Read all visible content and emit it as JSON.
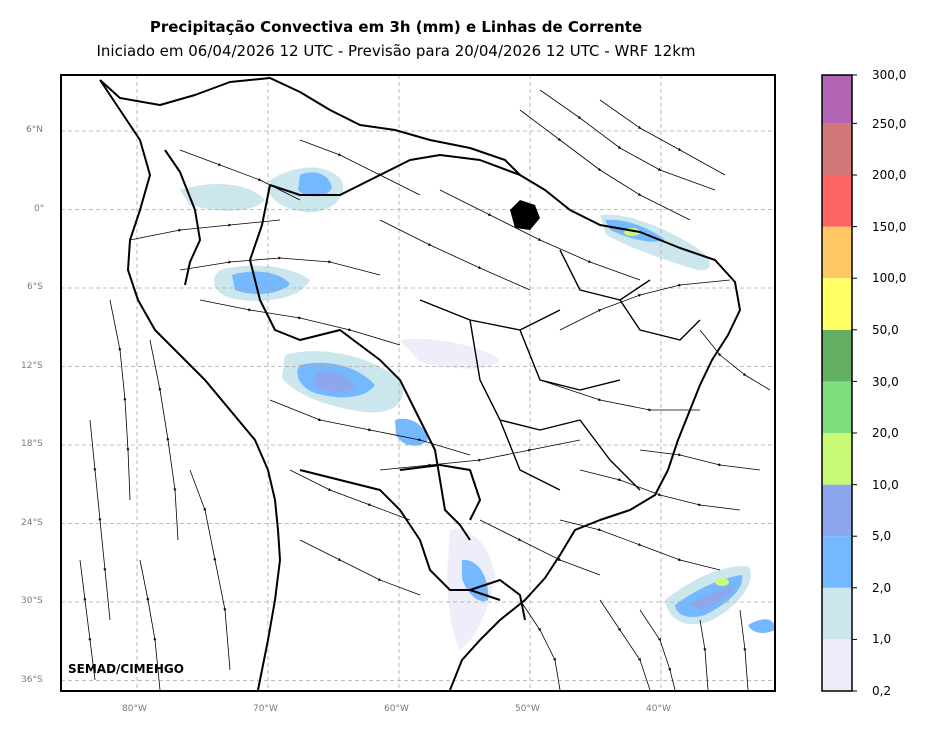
{
  "title": "Precipitação Convectiva em 3h (mm) e Linhas de Corrente",
  "subtitle": "Iniciado em 06/04/2026 12 UTC - Previsão para 20/04/2026 12 UTC - WRF 12km",
  "credit": "SEMAD/CIMEHGO",
  "lat_labels": [
    "6°N",
    "0°",
    "6°S",
    "12°S",
    "18°S",
    "24°S",
    "30°S",
    "36°S"
  ],
  "lon_labels": [
    "80°W",
    "70°W",
    "60°W",
    "50°W",
    "40°W"
  ],
  "colorbar": {
    "levels": [
      "0,2",
      "1,0",
      "2,0",
      "5,0",
      "10,0",
      "20,0",
      "30,0",
      "50,0",
      "100,0",
      "150,0",
      "200,0",
      "250,0",
      "300,0"
    ],
    "colors": [
      "#eeeefa",
      "#cce6ee",
      "#74b8ff",
      "#8ea6ee",
      "#c8fa78",
      "#7cde7c",
      "#64ae64",
      "#ffff64",
      "#ffc864",
      "#ff6464",
      "#d27878",
      "#b464b4"
    ]
  }
}
